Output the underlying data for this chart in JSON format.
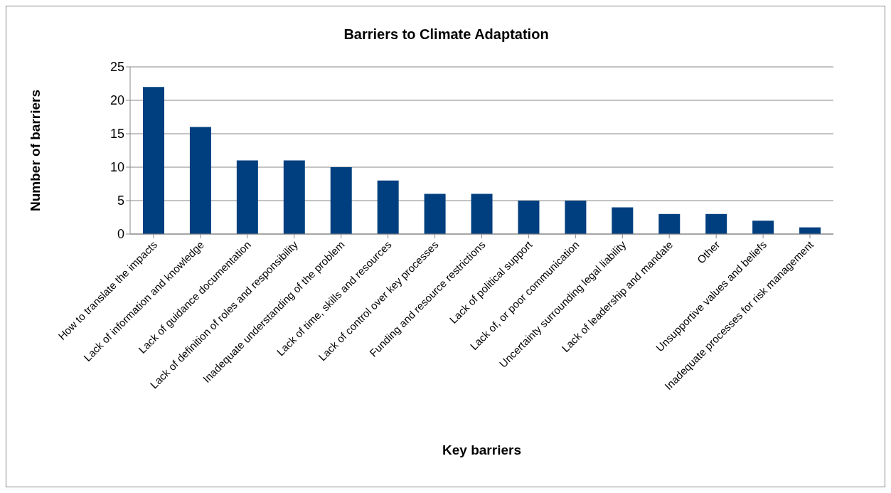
{
  "chart_data": {
    "type": "bar",
    "title": "Barriers to Climate Adaptation",
    "xlabel": "Key barriers",
    "ylabel": "Number of barriers",
    "categories": [
      "How to translate the impacts",
      "Lack of information and knowledge",
      "Lack of guidance documentation",
      "Lack of definition of roles and responsibility",
      "Inadequate understanding of the problem",
      "Lack of time, skills and resources",
      "Lack of control over key processes",
      "Funding and resource restrictions",
      "Lack of political support",
      "Lack of, or poor communication",
      "Uncertainty surrounding legal liability",
      "Lack of leadership and mandate",
      "Other",
      "Unsupportive values and beliefs",
      "Inadequate processes for risk management"
    ],
    "values": [
      22,
      16,
      11,
      11,
      10,
      8,
      6,
      6,
      5,
      5,
      4,
      3,
      3,
      2,
      1
    ],
    "color": "#003f7f",
    "ylim": [
      0,
      25
    ],
    "yticks": [
      0,
      5,
      10,
      15,
      20,
      25
    ],
    "grid": "y"
  }
}
